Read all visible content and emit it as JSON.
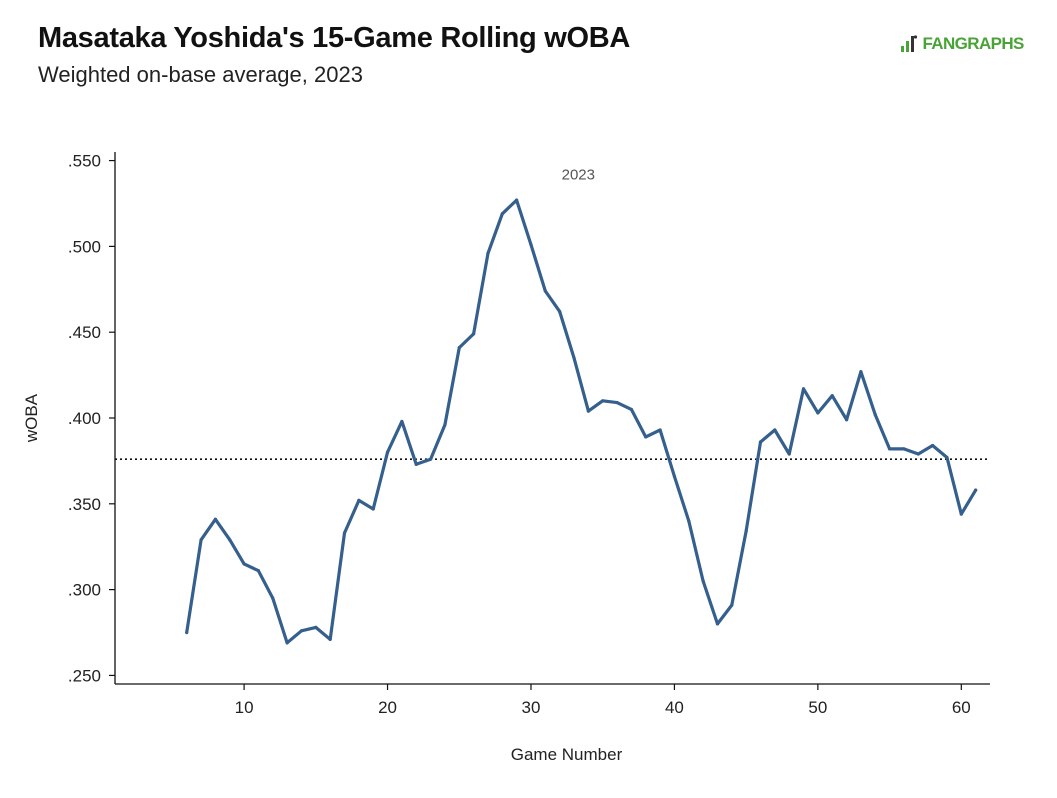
{
  "header": {
    "title": "Masataka Yoshida's 15-Game Rolling wOBA",
    "subtitle": "Weighted on-base average, 2023"
  },
  "logo": {
    "text": "FANGRAPHS",
    "icon": "fangraphs-logo-icon",
    "color": "#4aa336"
  },
  "chart_data": {
    "type": "line",
    "xlabel": "Game Number",
    "ylabel": "wOBA",
    "xlim": [
      1,
      62
    ],
    "ylim": [
      0.245,
      0.555
    ],
    "xticks": [
      10,
      20,
      30,
      40,
      50,
      60
    ],
    "xtick_labels": [
      "10",
      "20",
      "30",
      "40",
      "50",
      "60"
    ],
    "yticks": [
      0.25,
      0.3,
      0.35,
      0.4,
      0.45,
      0.5,
      0.55
    ],
    "ytick_labels": [
      ".250",
      ".300",
      ".350",
      ".400",
      ".450",
      ".500",
      ".550"
    ],
    "grid": false,
    "annotation": {
      "text": "2023",
      "x": 33.3,
      "y": 0.539
    },
    "reference_line": {
      "y": 0.376,
      "style": "dotted"
    },
    "line_color": "#355f8d",
    "series": [
      {
        "x": [
          6,
          7,
          8,
          9,
          10,
          11,
          12,
          13,
          14,
          15,
          16,
          17,
          18,
          19,
          20,
          21,
          22,
          23,
          24,
          25,
          26,
          27,
          28,
          29,
          30,
          31,
          32,
          33,
          34,
          35,
          36,
          37,
          38,
          39,
          40,
          41,
          42,
          43,
          44,
          45,
          46,
          47,
          48,
          49,
          50,
          51,
          52,
          53,
          54,
          55,
          56,
          57,
          58,
          59,
          60,
          61
        ],
        "y": [
          0.275,
          0.329,
          0.341,
          0.329,
          0.315,
          0.311,
          0.295,
          0.269,
          0.276,
          0.278,
          0.271,
          0.333,
          0.352,
          0.347,
          0.38,
          0.398,
          0.373,
          0.376,
          0.396,
          0.441,
          0.449,
          0.496,
          0.519,
          0.527,
          0.501,
          0.474,
          0.462,
          0.435,
          0.404,
          0.41,
          0.409,
          0.405,
          0.389,
          0.393,
          0.366,
          0.34,
          0.305,
          0.28,
          0.291,
          0.334,
          0.386,
          0.393,
          0.379,
          0.417,
          0.403,
          0.413,
          0.399,
          0.427,
          0.402,
          0.382,
          0.382,
          0.379,
          0.384,
          0.377,
          0.344,
          0.358
        ]
      }
    ]
  }
}
